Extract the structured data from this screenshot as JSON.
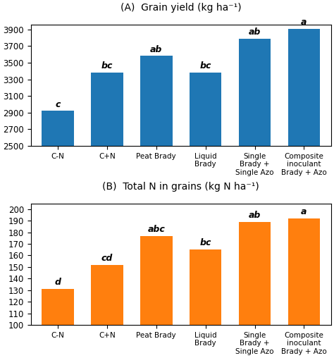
{
  "chart_data": [
    {
      "type": "bar",
      "title": "(A)  Grain yield (kg ha⁻¹)",
      "categories": [
        "C-N",
        "C+N",
        "Peat Brady",
        "Liquid\nBrady",
        "Single\nBrady +\nSingle Azo",
        "Composite\ninoculant\nBrady + Azo"
      ],
      "values": [
        2920,
        3380,
        3580,
        3380,
        3790,
        3910
      ],
      "annotations": [
        "c",
        "bc",
        "ab",
        "bc",
        "ab",
        "a"
      ],
      "ylim": [
        2500,
        3960
      ],
      "yticks": [
        2500,
        2700,
        2900,
        3100,
        3300,
        3500,
        3700,
        3900
      ],
      "grid": false
    },
    {
      "type": "bar",
      "title": "(B)  Total N in grains (kg N ha⁻¹)",
      "categories": [
        "C-N",
        "C+N",
        "Peat Brady",
        "Liquid\nBrady",
        "Single\nBrady +\nSingle Azo",
        "Composite\ninoculant\nBrady + Azo"
      ],
      "values": [
        131,
        152,
        177,
        165,
        189,
        192
      ],
      "annotations": [
        "d",
        "cd",
        "abc",
        "bc",
        "ab",
        "a"
      ],
      "ylim": [
        100,
        205
      ],
      "yticks": [
        100,
        110,
        120,
        130,
        140,
        150,
        160,
        170,
        180,
        190,
        200
      ],
      "grid": false
    }
  ]
}
